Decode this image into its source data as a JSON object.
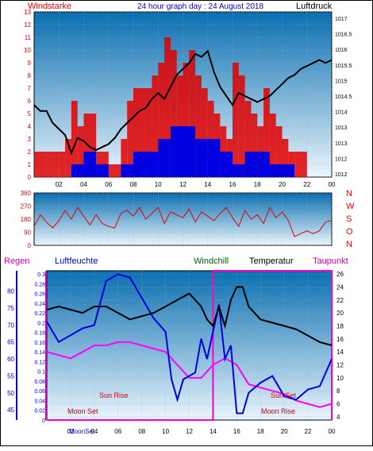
{
  "header": {
    "title": "24 hour graph day : 24 August 2018",
    "left_label": "Windstarke",
    "right_label": "Luftdruck"
  },
  "colors": {
    "red": "#e00000",
    "blue": "#0000e0",
    "black": "#000000",
    "magenta": "#ff00ff",
    "green": "#006600",
    "plot_top": "#0a6fb0",
    "plot_bottom": "#e8f4fb"
  },
  "x_ticks": [
    "02",
    "04",
    "06",
    "08",
    "10",
    "12",
    "14",
    "16",
    "18",
    "20",
    "22",
    "00"
  ],
  "bottom_x_ticks": [
    "02",
    "04",
    "06",
    "08",
    "10",
    "12",
    "14",
    "16",
    "18",
    "20",
    "22",
    "00"
  ],
  "chart_data": [
    {
      "type": "line",
      "name": "wind-pressure",
      "left_axis_ticks": [
        "0",
        "1",
        "2",
        "3",
        "4",
        "5",
        "6",
        "7",
        "8",
        "9",
        "10",
        "11",
        "12",
        "13"
      ],
      "right_axis_ticks": [
        "1012",
        "1012",
        "1013",
        "1013",
        "1014",
        "1014.5",
        "1015",
        "1015.5",
        "1016",
        "1016.5",
        "1017"
      ],
      "ylim_left": [
        0,
        13
      ],
      "ylim_right": [
        1012,
        1017.5
      ],
      "xlim": [
        0,
        24
      ],
      "pressure": {
        "x": [
          0,
          0.5,
          1,
          1.5,
          2,
          2.5,
          3,
          3.5,
          4,
          4.5,
          5,
          5.5,
          6,
          6.5,
          7,
          7.5,
          8,
          8.5,
          9,
          9.5,
          10,
          10.5,
          11,
          11.5,
          12,
          12.5,
          13,
          13.5,
          14,
          14.5,
          15,
          15.5,
          16,
          16.5,
          17,
          17.5,
          18,
          18.5,
          19,
          19.5,
          20,
          20.5,
          21,
          21.5,
          22,
          22.5,
          23,
          23.5,
          24
        ],
        "y": [
          1014.4,
          1014.2,
          1014.2,
          1013.8,
          1013.6,
          1013.4,
          1012.8,
          1013.3,
          1013.2,
          1013.0,
          1012.9,
          1013.0,
          1013.1,
          1013.3,
          1013.6,
          1013.8,
          1014.0,
          1014.2,
          1014.3,
          1014.6,
          1014.8,
          1014.6,
          1015.0,
          1015.4,
          1015.6,
          1015.8,
          1016.1,
          1016.0,
          1016.2,
          1015.5,
          1015.0,
          1014.7,
          1014.4,
          1014.8,
          1014.7,
          1014.6,
          1014.5,
          1014.6,
          1014.7,
          1014.9,
          1015.1,
          1015.3,
          1015.4,
          1015.6,
          1015.7,
          1015.8,
          1015.9,
          1015.8,
          1015.9
        ]
      },
      "wind_gust": {
        "x": [
          0,
          1,
          2,
          2.5,
          3,
          3.5,
          4,
          5,
          6,
          7,
          7.5,
          8,
          9,
          9.5,
          10,
          10.5,
          11,
          11.5,
          12,
          12.5,
          13,
          13.5,
          14,
          14.5,
          15,
          15.5,
          16,
          16.5,
          17,
          17.5,
          18,
          18.5,
          19,
          19.5,
          20,
          20.5,
          21,
          22,
          23,
          24
        ],
        "y": [
          2,
          2,
          2,
          3,
          6,
          4,
          5,
          2,
          1,
          3,
          6,
          7,
          7,
          8,
          9,
          11,
          10,
          8,
          9,
          10,
          8,
          7,
          6,
          5,
          4,
          3,
          9,
          8,
          6,
          5,
          4,
          7,
          5,
          4,
          3,
          2,
          2,
          0,
          0,
          0
        ]
      },
      "wind_avg": {
        "x": [
          0,
          1,
          2,
          3,
          4,
          5,
          6,
          6.5,
          7,
          8,
          9,
          10,
          11,
          12,
          13,
          14,
          15,
          16,
          17,
          18,
          19,
          20,
          21,
          22,
          23,
          24
        ],
        "y": [
          0,
          0,
          0,
          1,
          2,
          1,
          0,
          0,
          1,
          2,
          2,
          3,
          4,
          4,
          3,
          3,
          2,
          1,
          2,
          2,
          1,
          1,
          0,
          0,
          0,
          0
        ]
      }
    },
    {
      "type": "line",
      "name": "wind-direction",
      "left_axis_ticks": [
        "0",
        "90",
        "180",
        "270",
        "360"
      ],
      "right_axis_letters": [
        "N",
        "W",
        "S",
        "O",
        "N"
      ],
      "ylim": [
        0,
        360
      ],
      "xlim": [
        0,
        24
      ],
      "direction": {
        "x": [
          0,
          0.5,
          1,
          1.5,
          2,
          2.5,
          3,
          3.5,
          4,
          4.5,
          5,
          5.5,
          6,
          6.5,
          7,
          7.5,
          8,
          8.5,
          9,
          9.5,
          10,
          10.5,
          11,
          11.5,
          12,
          12.5,
          13,
          13.5,
          14,
          14.5,
          15,
          15.5,
          16,
          16.5,
          17,
          17.5,
          18,
          18.5,
          19,
          19.5,
          20,
          20.5,
          21,
          21.5,
          22,
          22.5,
          23,
          23.5,
          24
        ],
        "y": [
          130,
          210,
          160,
          120,
          170,
          240,
          180,
          260,
          200,
          140,
          210,
          150,
          130,
          120,
          220,
          240,
          200,
          260,
          180,
          220,
          260,
          150,
          230,
          210,
          190,
          250,
          160,
          230,
          200,
          170,
          220,
          260,
          190,
          130,
          240,
          180,
          210,
          150,
          260,
          190,
          230,
          170,
          60,
          80,
          100,
          80,
          100,
          160,
          170
        ]
      }
    },
    {
      "type": "line",
      "name": "humidity-temperature",
      "legend": [
        "Regen",
        "Luftfeuchte",
        "Windchill",
        "Temperatur",
        "Taupunkt"
      ],
      "rain_ticks": [
        "0",
        "0.02",
        "0.04",
        "0.06",
        "0.08",
        "0.1",
        "0.12",
        "0.14",
        "0.16",
        "0.18",
        "0.2",
        "0.22",
        "0.24",
        "0.26",
        "0.28",
        "0.3"
      ],
      "humidity_ticks": [
        "45",
        "50",
        "55",
        "60",
        "65",
        "70",
        "75",
        "80"
      ],
      "temp_ticks": [
        "4",
        "6",
        "8",
        "10",
        "12",
        "14",
        "16",
        "18",
        "20",
        "22",
        "24",
        "26"
      ],
      "xlim": [
        0,
        24
      ],
      "temp_lim": [
        3.5,
        26.5
      ],
      "temperature": {
        "x": [
          0,
          1,
          2,
          3,
          4,
          5,
          6,
          7,
          8,
          9,
          10,
          11,
          12,
          13,
          13.5,
          14,
          14.5,
          15,
          15.5,
          16,
          16.5,
          17,
          18,
          19,
          20,
          21,
          22,
          23,
          24
        ],
        "y": [
          20.5,
          21,
          20.5,
          20,
          21,
          21,
          20,
          19,
          19.5,
          20,
          21,
          22,
          23,
          21,
          19,
          18,
          21,
          18,
          22,
          24,
          24,
          21,
          19,
          18.5,
          18,
          17.5,
          16.5,
          15.5,
          15
        ]
      },
      "humidity": {
        "x": [
          0,
          1,
          2,
          3,
          4,
          5,
          6,
          7,
          8,
          9,
          10,
          10.5,
          11,
          11.5,
          12,
          12.5,
          13,
          13.5,
          14,
          14.5,
          15,
          15.5,
          16,
          16.5,
          17,
          18,
          19,
          20,
          21,
          22,
          23,
          24
        ],
        "y": [
          71,
          65,
          67,
          69,
          70,
          83,
          85,
          84,
          78,
          72,
          68,
          54,
          48,
          54,
          55,
          56,
          66,
          60,
          68,
          76,
          60,
          64,
          44,
          44,
          50,
          53,
          55,
          49,
          48,
          51,
          52,
          60
        ]
      },
      "dewpoint": {
        "x": [
          0,
          1,
          2,
          3,
          4,
          5,
          6,
          7,
          8,
          9,
          10,
          11,
          12,
          13,
          14,
          15,
          16,
          17,
          18,
          19,
          20,
          21,
          22,
          23,
          24
        ],
        "y": [
          14,
          13.5,
          13,
          14,
          15,
          15,
          15.5,
          15.5,
          15,
          14.5,
          14,
          12,
          10,
          10,
          12,
          13,
          12,
          9,
          8.5,
          8,
          7.5,
          6.5,
          6,
          5.5,
          6
        ]
      },
      "annotations": [
        "Sun Rise",
        "Sun Set",
        "Moon Set",
        "Moon Rise"
      ],
      "bottom_labels": [
        "MoonSet"
      ]
    }
  ]
}
